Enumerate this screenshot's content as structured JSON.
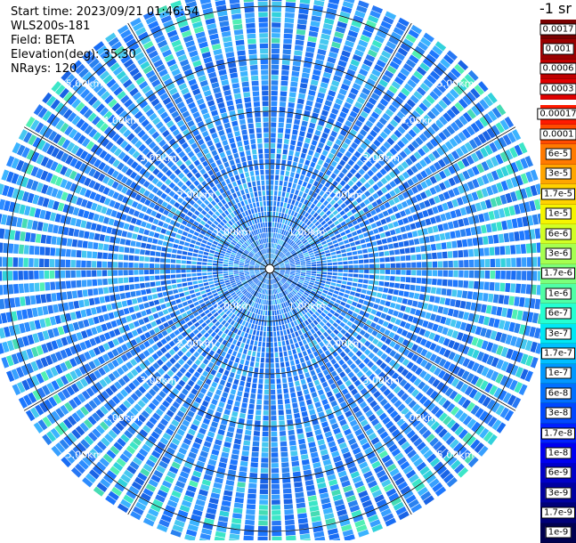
{
  "info": {
    "start_time": "Start time: 2023/09/21 01:46:54",
    "device": "WLS200s-181",
    "field": "Field: BETA",
    "elevation": "Elevation(deg): 35.30",
    "nrays": "NRays: 120"
  },
  "unit_label": "-1 sr",
  "colorbar": {
    "upper": [
      {
        "label": "0.0017",
        "color": "#7a0000"
      },
      {
        "label": "0.001",
        "color": "#9b0000"
      },
      {
        "label": "0.0006",
        "color": "#bf0000"
      },
      {
        "label": "0.0003",
        "color": "#e00000"
      }
    ],
    "lower": [
      {
        "label": "0.00017",
        "color": "#ff1a00"
      },
      {
        "label": "0.0001",
        "color": "#ff4b00"
      },
      {
        "label": "6e-5",
        "color": "#ff7a00"
      },
      {
        "label": "3e-5",
        "color": "#ffa600"
      },
      {
        "label": "1.7e-5",
        "color": "#ffd200"
      },
      {
        "label": "1e-5",
        "color": "#f5f500"
      },
      {
        "label": "6e-6",
        "color": "#d2ff24"
      },
      {
        "label": "3e-6",
        "color": "#a6ff50"
      },
      {
        "label": "1.7e-6",
        "color": "#7cff7a"
      },
      {
        "label": "1e-6",
        "color": "#50ffa6"
      },
      {
        "label": "6e-7",
        "color": "#24ffd2"
      },
      {
        "label": "3e-7",
        "color": "#00e8f5"
      },
      {
        "label": "1.7e-7",
        "color": "#00c0ff"
      },
      {
        "label": "1e-7",
        "color": "#0098ff"
      },
      {
        "label": "6e-8",
        "color": "#0070ff"
      },
      {
        "label": "3e-8",
        "color": "#0048ff"
      },
      {
        "label": "1.7e-8",
        "color": "#0020ff"
      },
      {
        "label": "1e-8",
        "color": "#0000f0"
      },
      {
        "label": "6e-9",
        "color": "#0000c8"
      },
      {
        "label": "3e-9",
        "color": "#0000a0"
      },
      {
        "label": "1.7e-9",
        "color": "#000078"
      },
      {
        "label": "1e-9",
        "color": "#000050"
      }
    ]
  },
  "chart_data": {
    "type": "heatmap",
    "projection": "polar (PPI scan)",
    "field": "BETA",
    "range_unit": "km",
    "max_range_km": 5.4,
    "range_labels": [
      "1.00km",
      "2.00km",
      "3.00km",
      "4.00km",
      "5.00km"
    ],
    "range_label_bearings_deg": [
      -45,
      45,
      135,
      225
    ],
    "rays": 120,
    "dominant_value_range": [
      "3e-8",
      "3e-7"
    ],
    "colorbar_scale": "log"
  }
}
